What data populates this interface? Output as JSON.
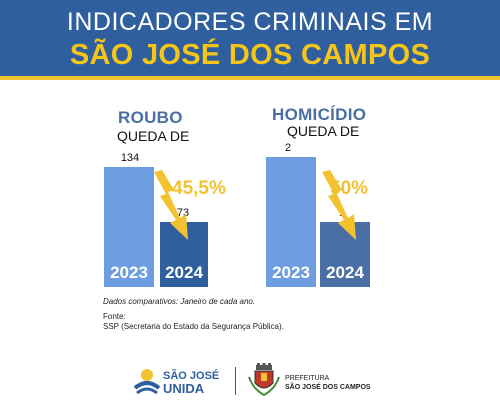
{
  "header": {
    "line1": "INDICADORES CRIMINAIS EM",
    "line2": "SÃO JOSÉ DOS CAMPOS"
  },
  "chart_data": [
    {
      "type": "bar",
      "title": "ROUBO",
      "subtitle": "QUEDA DE",
      "categories": [
        "2023",
        "2024"
      ],
      "values": [
        134,
        73
      ],
      "change_label": "45,5%",
      "ylim": [
        0,
        134
      ],
      "colors": [
        "#6f9ee0",
        "#2f5f9e"
      ]
    },
    {
      "type": "bar",
      "title": "HOMICÍDIO",
      "subtitle": "QUEDA DE",
      "categories": [
        "2023",
        "2024"
      ],
      "values": [
        2,
        1
      ],
      "change_label": "50%",
      "ylim": [
        0,
        2
      ],
      "colors": [
        "#6f9ee0",
        "#4a6fa5"
      ]
    }
  ],
  "notes": {
    "comparativos": "Dados comparativos: Janeiro de cada ano.",
    "fonte_label": "Fonte:",
    "fonte_text": "SSP (Secretaria do Estado da Segurança Pública)."
  },
  "footer": {
    "sj_line1": "SÃO JOSÉ",
    "sj_line2": "UNIDA",
    "prefeitura_line1": "PREFEITURA",
    "prefeitura_line2": "SÃO JOSÉ DOS CAMPOS"
  },
  "colors": {
    "header_bg": "#2f5f9e",
    "accent_yellow": "#f2c230"
  }
}
